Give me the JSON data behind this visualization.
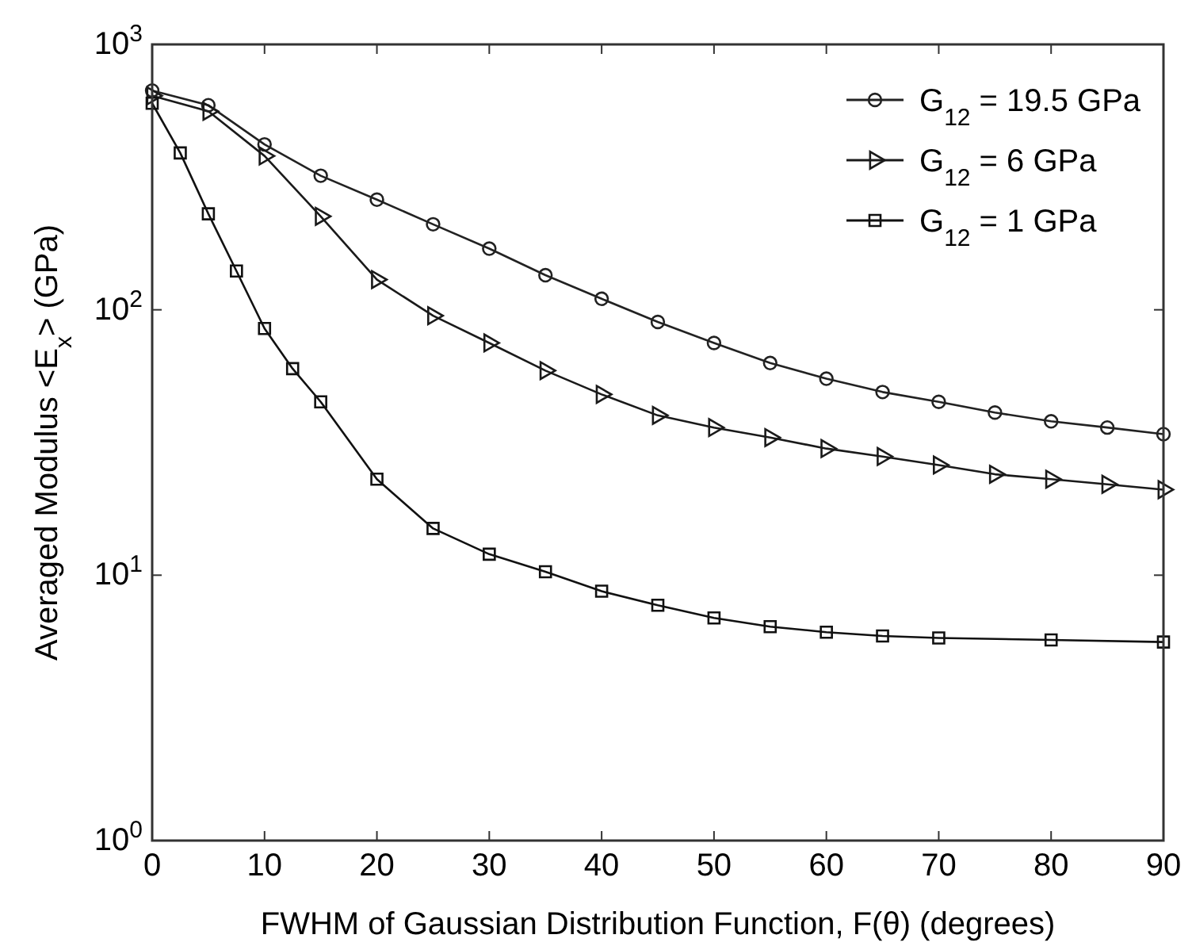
{
  "chart_data": {
    "type": "line",
    "xlabel": "FWHM of Gaussian Distribution Function, F(θ) (degrees)",
    "ylabel": "Averaged Modulus <E$_{x}$> (GPa)",
    "log": "y",
    "xlim": [
      0,
      90
    ],
    "xticks": [
      0,
      10,
      20,
      30,
      40,
      50,
      60,
      70,
      80,
      90
    ],
    "ylim": [
      1,
      1000
    ],
    "yticks": [
      {
        "value": 1,
        "label": "10$^{0}$"
      },
      {
        "value": 10,
        "label": "10$^{1}$"
      },
      {
        "value": 100,
        "label": "10$^{2}$"
      },
      {
        "value": 1000,
        "label": "10$^{3}$"
      }
    ],
    "grid": false,
    "legend": "top right",
    "line_style": "solid",
    "series": [
      {
        "name": "G$_{12}$ = 19.5 GPa",
        "color": "#222222",
        "marker": "circle",
        "x": [
          0,
          5,
          10,
          15,
          20,
          25,
          30,
          35,
          40,
          45,
          50,
          55,
          60,
          65,
          70,
          75,
          80,
          85,
          90
        ],
        "values": [
          670,
          590,
          420,
          320,
          260,
          210,
          170,
          135,
          110,
          90,
          75,
          63,
          55,
          49,
          45,
          41,
          38,
          36,
          34
        ]
      },
      {
        "name": "G$_{12}$ = 6 GPa",
        "color": "#1a1a1a",
        "marker": "triangle",
        "x": [
          0,
          5,
          10,
          15,
          20,
          25,
          30,
          35,
          40,
          45,
          50,
          55,
          60,
          65,
          70,
          75,
          80,
          85,
          90
        ],
        "values": [
          640,
          560,
          380,
          225,
          130,
          95,
          75,
          59,
          48,
          40,
          36,
          33,
          30,
          28,
          26,
          24,
          23,
          22,
          21
        ]
      },
      {
        "name": "G$_{12}$ = 1 GPa",
        "color": "#111111",
        "marker": "square",
        "x": [
          0,
          2.5,
          5,
          7.5,
          10,
          12.5,
          15,
          20,
          25,
          30,
          35,
          40,
          45,
          50,
          55,
          60,
          65,
          70,
          80,
          90
        ],
        "values": [
          600,
          390,
          230,
          140,
          85,
          60,
          45,
          23,
          15,
          12,
          10.3,
          8.7,
          7.7,
          6.9,
          6.4,
          6.1,
          5.9,
          5.8,
          5.7,
          5.6
        ]
      }
    ]
  }
}
